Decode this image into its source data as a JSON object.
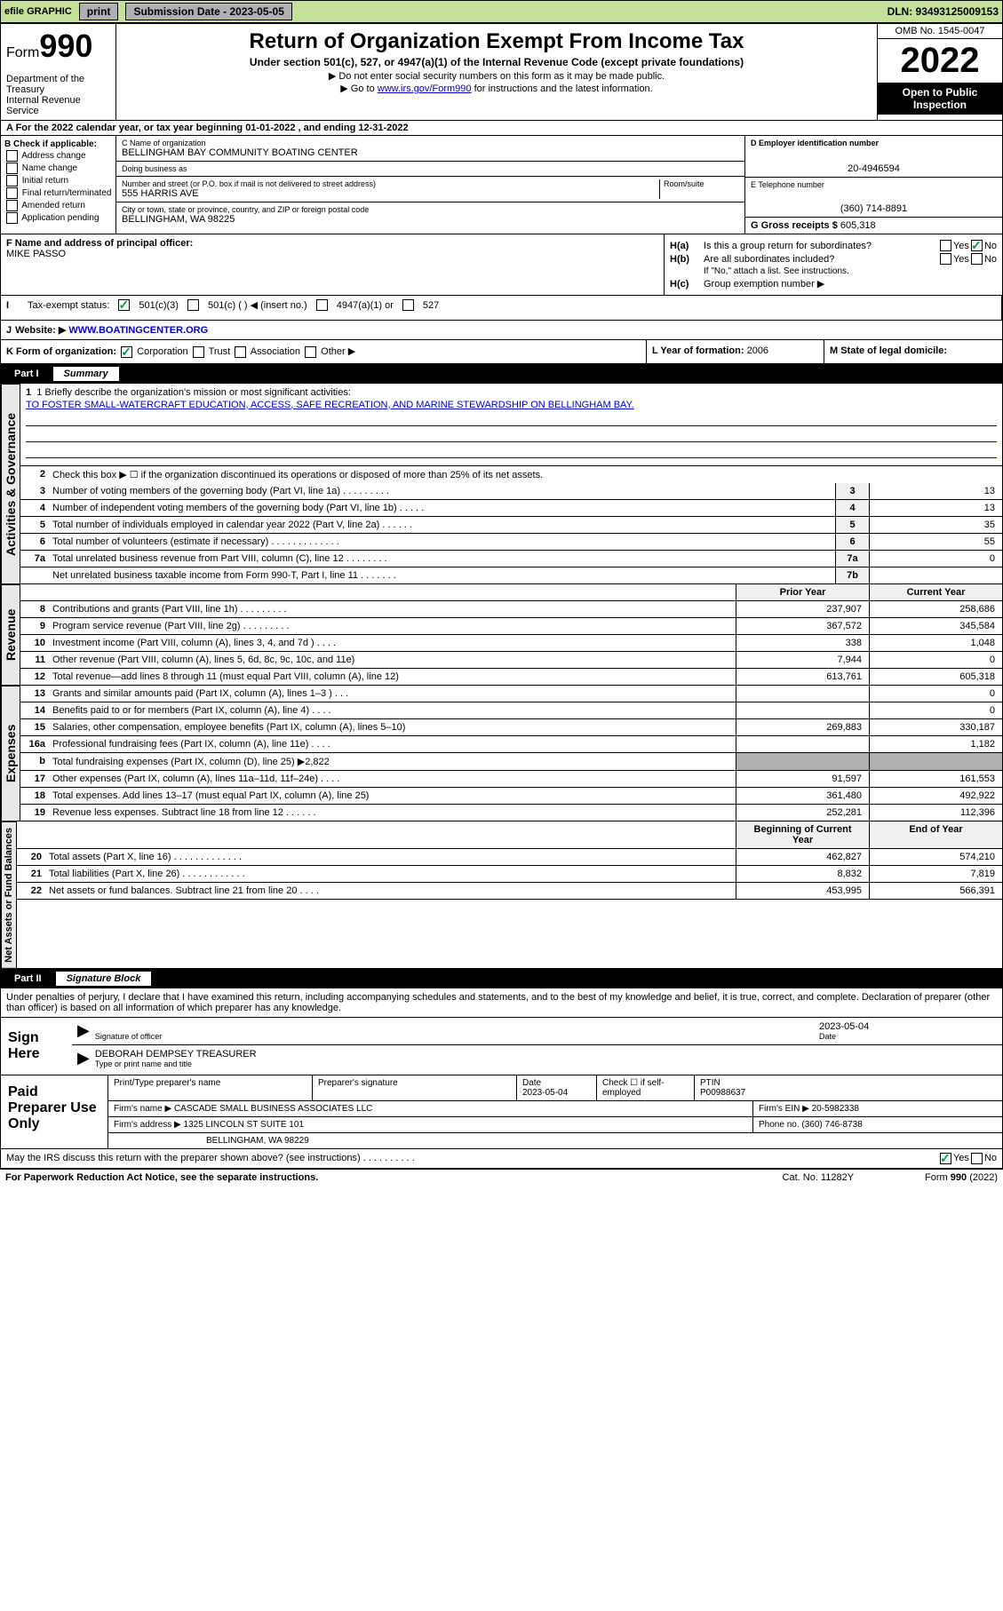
{
  "topbar": {
    "efile": "efile GRAPHIC",
    "print": "print",
    "sub_label": "Submission Date - 2023-05-05",
    "dln": "DLN: 93493125009153"
  },
  "header": {
    "form_label": "Form",
    "form_number": "990",
    "title": "Return of Organization Exempt From Income Tax",
    "sub": "Under section 501(c), 527, or 4947(a)(1) of the Internal Revenue Code (except private foundations)",
    "note1": "▶ Do not enter social security numbers on this form as it may be made public.",
    "note2_pre": "▶ Go to ",
    "note2_link": "www.irs.gov/Form990",
    "note2_post": " for instructions and the latest information.",
    "dept": "Department of the Treasury",
    "irs": "Internal Revenue Service",
    "omb": "OMB No. 1545-0047",
    "year": "2022",
    "open": "Open to Public Inspection"
  },
  "rowA": {
    "text": "A For the 2022 calendar year, or tax year beginning 01-01-2022   , and ending 12-31-2022"
  },
  "boxB": {
    "title": "B Check if applicable:",
    "items": [
      "Address change",
      "Name change",
      "Initial return",
      "Final return/terminated",
      "Amended return",
      "Application pending"
    ]
  },
  "boxC": {
    "lbl_name": "C Name of organization",
    "name": "BELLINGHAM BAY COMMUNITY BOATING CENTER",
    "lbl_dba": "Doing business as",
    "dba": "",
    "lbl_addr": "Number and street (or P.O. box if mail is not delivered to street address)",
    "addr": "555 HARRIS AVE",
    "lbl_room": "Room/suite",
    "room": "",
    "lbl_city": "City or town, state or province, country, and ZIP or foreign postal code",
    "city": "BELLINGHAM, WA  98225"
  },
  "boxD": {
    "lbl": "D Employer identification number",
    "val": "20-4946594"
  },
  "boxE": {
    "lbl": "E Telephone number",
    "val": "(360) 714-8891"
  },
  "boxG": {
    "lbl": "G Gross receipts $",
    "val": "605,318"
  },
  "boxF": {
    "lbl": "F Name and address of principal officer:",
    "name": "MIKE PASSO"
  },
  "boxH": {
    "ha": "H(a)  Is this a group return for subordinates?",
    "hb": "H(b)  Are all subordinates included?",
    "hb_note": "If \"No,\" attach a list. See instructions.",
    "hc": "H(c)  Group exemption number ▶"
  },
  "rowI": {
    "lbl": "Tax-exempt status:",
    "opts": [
      "501(c)(3)",
      "501(c) (  ) ◀ (insert no.)",
      "4947(a)(1) or",
      "527"
    ]
  },
  "rowJ": {
    "lbl": "Website: ▶",
    "val": "WWW.BOATINGCENTER.ORG"
  },
  "rowK": {
    "lbl": "K Form of organization:",
    "opts": [
      "Corporation",
      "Trust",
      "Association",
      "Other ▶"
    ]
  },
  "rowL": {
    "lbl": "L Year of formation:",
    "val": "2006"
  },
  "rowM": {
    "lbl": "M State of legal domicile:",
    "val": ""
  },
  "part1": {
    "hdr": "Part I",
    "title": "Summary",
    "mission_lbl": "1  Briefly describe the organization's mission or most significant activities:",
    "mission": "TO FOSTER SMALL-WATERCRAFT EDUCATION, ACCESS, SAFE RECREATION, AND MARINE STEWARDSHIP ON BELLINGHAM BAY.",
    "line2": "Check this box ▶ ☐  if the organization discontinued its operations or disposed of more than 25% of its net assets."
  },
  "governance": {
    "label": "Activities & Governance",
    "rows": [
      {
        "n": "3",
        "d": "Number of voting members of the governing body (Part VI, line 1a)  .    .    .    .    .    .    .    .    .",
        "b": "3",
        "v": "13"
      },
      {
        "n": "4",
        "d": "Number of independent voting members of the governing body (Part VI, line 1b)   .    .    .    .    .",
        "b": "4",
        "v": "13"
      },
      {
        "n": "5",
        "d": "Total number of individuals employed in calendar year 2022 (Part V, line 2a)    .    .    .    .    .    .",
        "b": "5",
        "v": "35"
      },
      {
        "n": "6",
        "d": "Total number of volunteers (estimate if necessary)   .    .    .    .    .    .    .    .    .    .    .    .    .",
        "b": "6",
        "v": "55"
      },
      {
        "n": "7a",
        "d": "Total unrelated business revenue from Part VIII, column (C), line 12   .    .    .    .    .    .    .    .",
        "b": "7a",
        "v": "0"
      },
      {
        "n": "",
        "d": "Net unrelated business taxable income from Form 990-T, Part I, line 11   .    .    .    .    .    .    .",
        "b": "7b",
        "v": ""
      }
    ]
  },
  "revenue": {
    "label": "Revenue",
    "prior_hdr": "Prior Year",
    "curr_hdr": "Current Year",
    "rows": [
      {
        "n": "8",
        "d": "Contributions and grants (Part VIII, line 1h)   .    .    .    .    .    .    .    .    .",
        "p": "237,907",
        "c": "258,686"
      },
      {
        "n": "9",
        "d": "Program service revenue (Part VIII, line 2g)   .    .    .    .    .    .    .    .    .",
        "p": "367,572",
        "c": "345,584"
      },
      {
        "n": "10",
        "d": "Investment income (Part VIII, column (A), lines 3, 4, and 7d )   .    .    .    .",
        "p": "338",
        "c": "1,048"
      },
      {
        "n": "11",
        "d": "Other revenue (Part VIII, column (A), lines 5, 6d, 8c, 9c, 10c, and 11e)",
        "p": "7,944",
        "c": "0"
      },
      {
        "n": "12",
        "d": "Total revenue—add lines 8 through 11 (must equal Part VIII, column (A), line 12)",
        "p": "613,761",
        "c": "605,318"
      }
    ]
  },
  "expenses": {
    "label": "Expenses",
    "rows": [
      {
        "n": "13",
        "d": "Grants and similar amounts paid (Part IX, column (A), lines 1–3 )   .    .    .",
        "p": "",
        "c": "0"
      },
      {
        "n": "14",
        "d": "Benefits paid to or for members (Part IX, column (A), line 4)   .    .    .    .",
        "p": "",
        "c": "0"
      },
      {
        "n": "15",
        "d": "Salaries, other compensation, employee benefits (Part IX, column (A), lines 5–10)",
        "p": "269,883",
        "c": "330,187"
      },
      {
        "n": "16a",
        "d": "Professional fundraising fees (Part IX, column (A), line 11e)   .    .    .    .",
        "p": "",
        "c": "1,182"
      },
      {
        "n": "b",
        "d": "Total fundraising expenses (Part IX, column (D), line 25) ▶2,822",
        "p": "shade",
        "c": "shade"
      },
      {
        "n": "17",
        "d": "Other expenses (Part IX, column (A), lines 11a–11d, 11f–24e)   .    .    .    .",
        "p": "91,597",
        "c": "161,553"
      },
      {
        "n": "18",
        "d": "Total expenses. Add lines 13–17 (must equal Part IX, column (A), line 25)",
        "p": "361,480",
        "c": "492,922"
      },
      {
        "n": "19",
        "d": "Revenue less expenses. Subtract line 18 from line 12   .    .    .    .    .    .",
        "p": "252,281",
        "c": "112,396"
      }
    ]
  },
  "netassets": {
    "label": "Net Assets or Fund Balances",
    "prior_hdr": "Beginning of Current Year",
    "curr_hdr": "End of Year",
    "rows": [
      {
        "n": "20",
        "d": "Total assets (Part X, line 16)   .    .    .    .    .    .    .    .    .    .    .    .    .",
        "p": "462,827",
        "c": "574,210"
      },
      {
        "n": "21",
        "d": "Total liabilities (Part X, line 26)   .    .    .    .    .    .    .    .    .    .    .    .",
        "p": "8,832",
        "c": "7,819"
      },
      {
        "n": "22",
        "d": "Net assets or fund balances. Subtract line 21 from line 20   .    .    .    .",
        "p": "453,995",
        "c": "566,391"
      }
    ]
  },
  "part2": {
    "hdr": "Part II",
    "title": "Signature Block",
    "decl": "Under penalties of perjury, I declare that I have examined this return, including accompanying schedules and statements, and to the best of my knowledge and belief, it is true, correct, and complete. Declaration of preparer (other than officer) is based on all information of which preparer has any knowledge."
  },
  "sign": {
    "lbl": "Sign Here",
    "sig_lbl": "Signature of officer",
    "date_lbl": "Date",
    "date": "2023-05-04",
    "name": "DEBORAH DEMPSEY TREASURER",
    "name_lbl": "Type or print name and title"
  },
  "prep": {
    "lbl": "Paid Preparer Use Only",
    "hdr": [
      "Print/Type preparer's name",
      "Preparer's signature",
      "Date",
      "Check ☐ if self-employed",
      "PTIN"
    ],
    "r1_date": "2023-05-04",
    "r1_ptin": "P00988637",
    "firm_name_lbl": "Firm's name    ▶",
    "firm_name": "CASCADE SMALL BUSINESS ASSOCIATES LLC",
    "firm_ein_lbl": "Firm's EIN ▶",
    "firm_ein": "20-5982338",
    "firm_addr_lbl": "Firm's address ▶",
    "firm_addr1": "1325 LINCOLN ST SUITE 101",
    "firm_addr2": "BELLINGHAM, WA  98229",
    "phone_lbl": "Phone no.",
    "phone": "(360) 746-8738"
  },
  "discuss": "May the IRS discuss this return with the preparer shown above? (see instructions)   .    .    .    .    .    .    .    .    .    .",
  "footer": {
    "left": "For Paperwork Reduction Act Notice, see the separate instructions.",
    "mid": "Cat. No. 11282Y",
    "right": "Form 990 (2022)"
  }
}
